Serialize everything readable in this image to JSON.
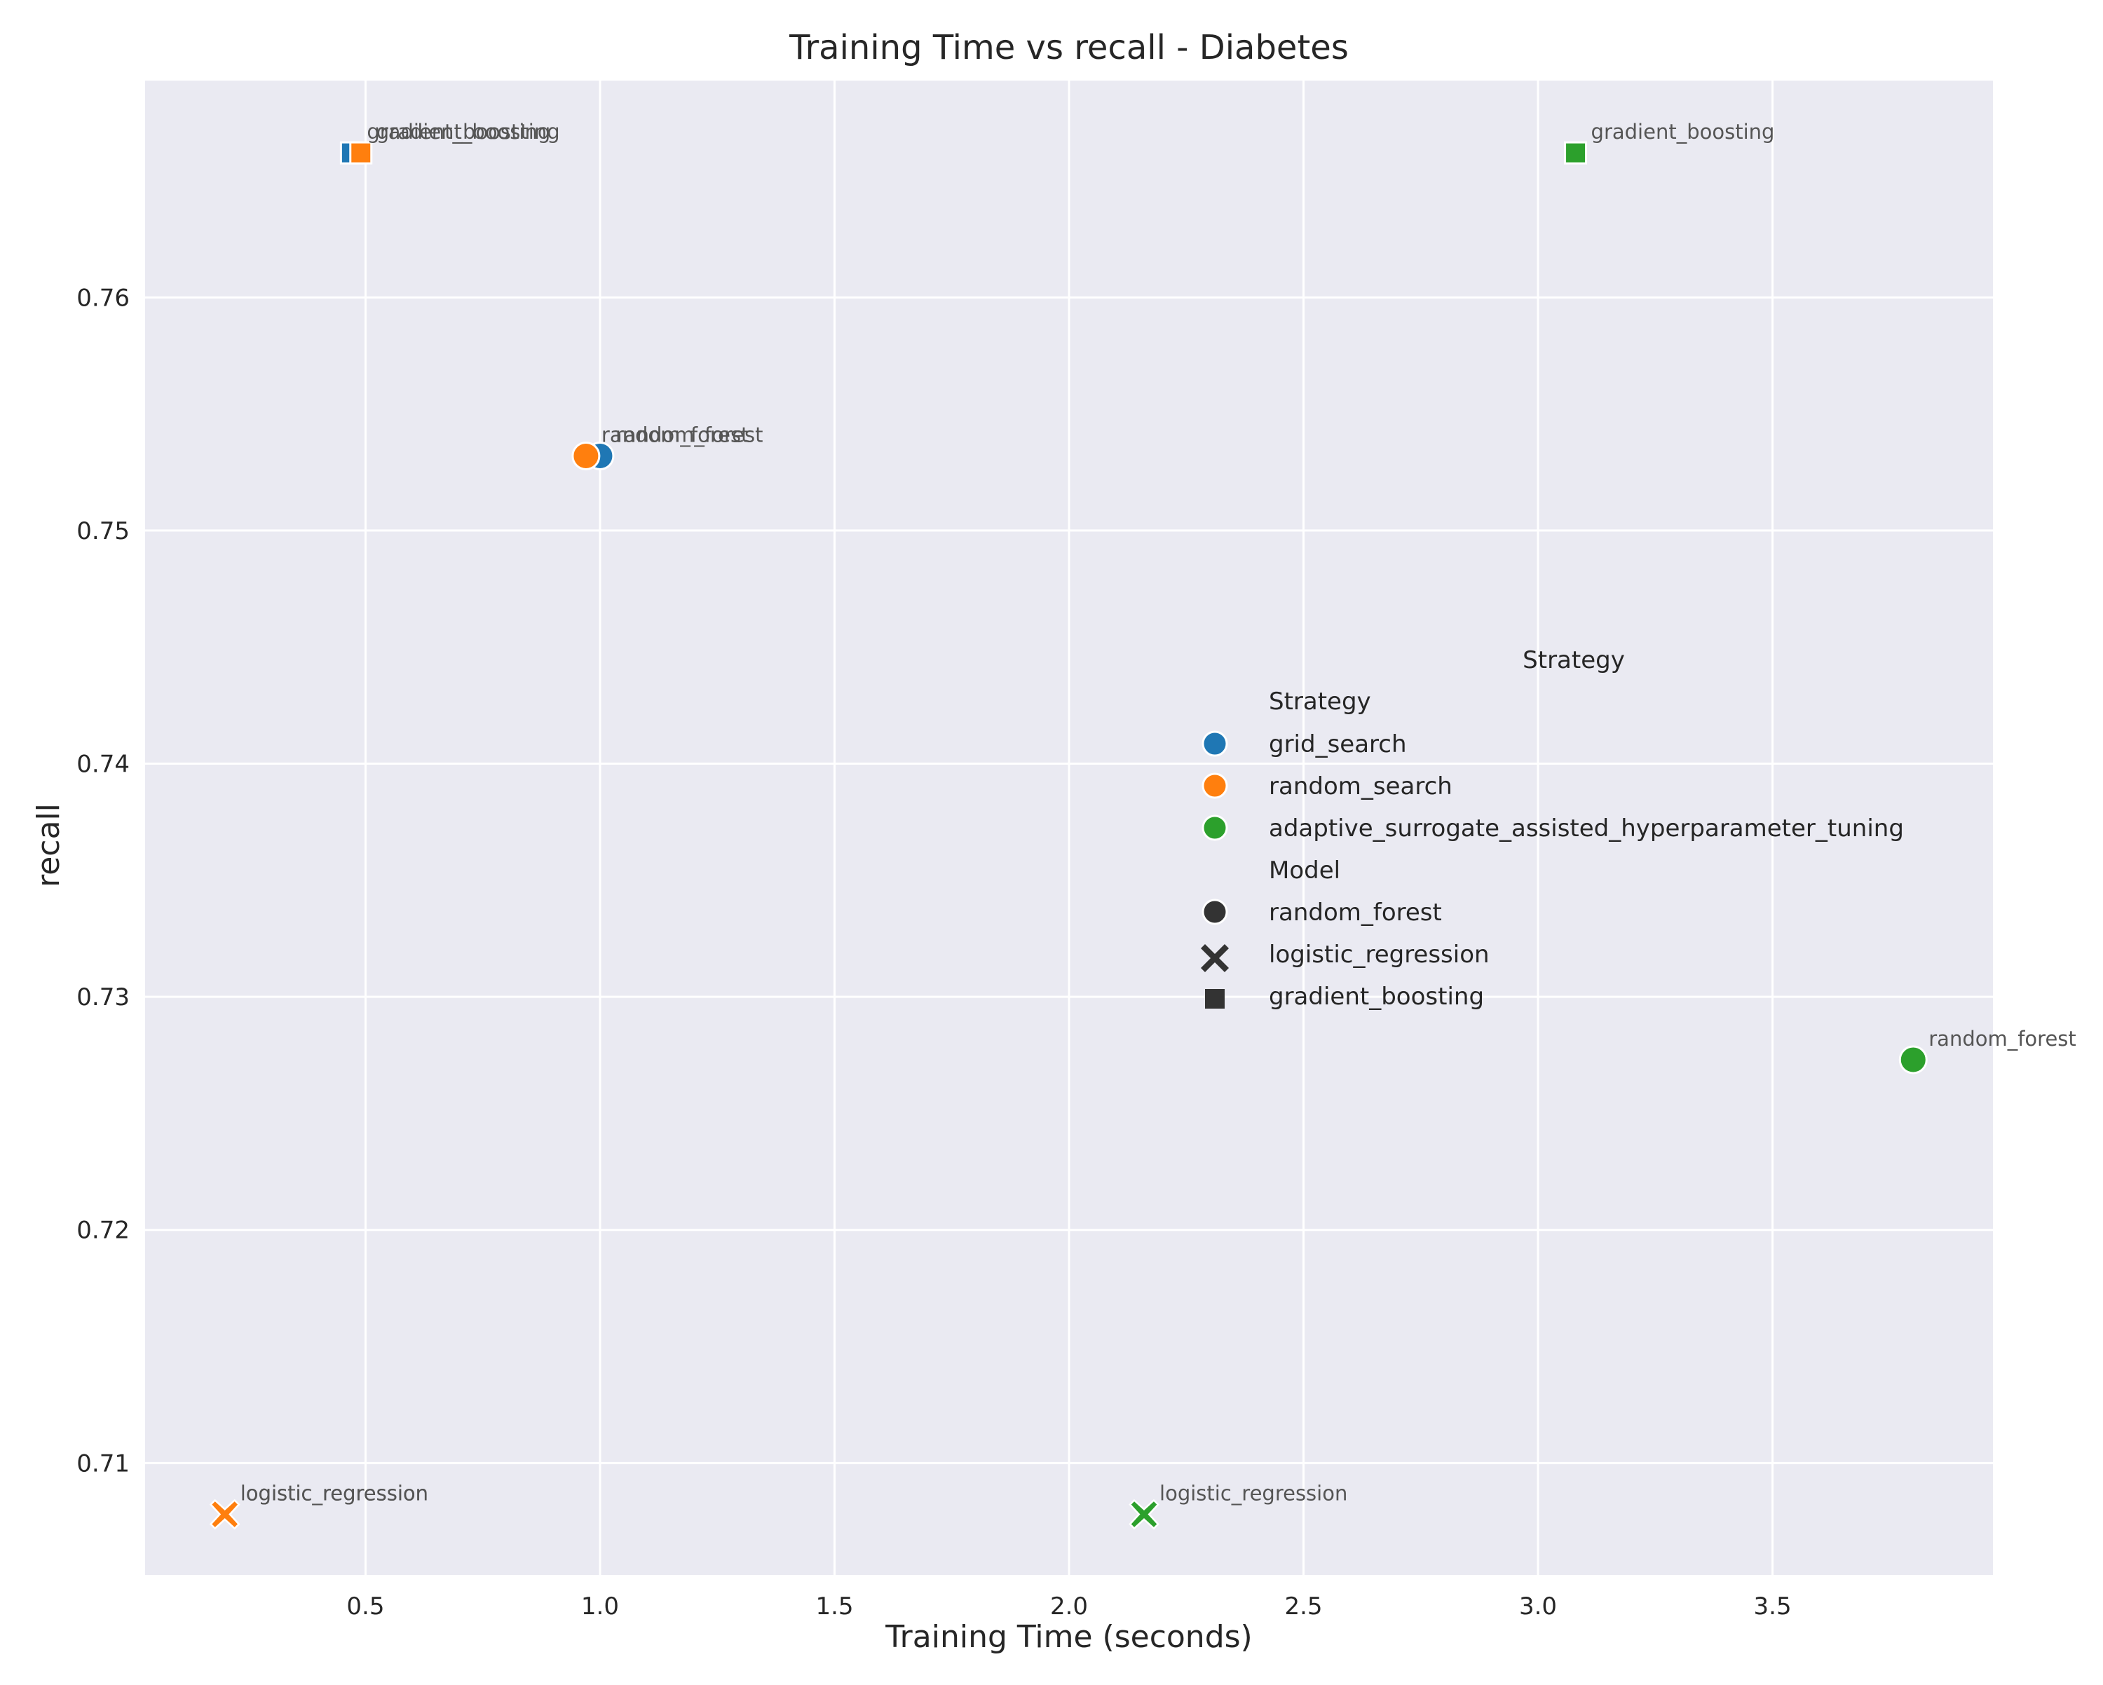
{
  "chart_data": {
    "type": "scatter",
    "title": "Training Time vs recall - Diabetes",
    "xlabel": "Training Time (seconds)",
    "ylabel": "recall",
    "xlim": [
      0.03,
      3.97
    ],
    "ylim": [
      0.7052,
      0.7693
    ],
    "xticks": [
      0.5,
      1.0,
      1.5,
      2.0,
      2.5,
      3.0,
      3.5
    ],
    "xtick_labels": [
      "0.5",
      "1.0",
      "1.5",
      "2.0",
      "2.5",
      "3.0",
      "3.5"
    ],
    "yticks": [
      0.71,
      0.72,
      0.73,
      0.74,
      0.75,
      0.76
    ],
    "ytick_labels": [
      "0.71",
      "0.72",
      "0.73",
      "0.74",
      "0.75",
      "0.76"
    ],
    "grid": true,
    "legend_placement": "center-right",
    "legend": {
      "outer_title": "Strategy",
      "hue_title": "Strategy",
      "style_title": "Model",
      "hue_entries": [
        {
          "label": "grid_search",
          "color": "#1f77b4"
        },
        {
          "label": "random_search",
          "color": "#ff7f0e"
        },
        {
          "label": "adaptive_surrogate_assisted_hyperparameter_tuning",
          "color": "#2ca02c"
        }
      ],
      "style_entries": [
        {
          "label": "random_forest",
          "marker": "circle"
        },
        {
          "label": "logistic_regression",
          "marker": "x"
        },
        {
          "label": "gradient_boosting",
          "marker": "square"
        }
      ]
    },
    "points": [
      {
        "x": 0.47,
        "y": 0.7662,
        "strategy": "grid_search",
        "model": "gradient_boosting",
        "label": "gradient_boosting",
        "color": "#1f77b4",
        "marker": "square"
      },
      {
        "x": 1.0,
        "y": 0.7532,
        "strategy": "grid_search",
        "model": "random_forest",
        "label": "random_forest",
        "color": "#1f77b4",
        "marker": "circle"
      },
      {
        "x": 0.2,
        "y": 0.7078,
        "strategy": "grid_search",
        "model": "logistic_regression",
        "label": "logistic_regression",
        "color": "#1f77b4",
        "marker": "x"
      },
      {
        "x": 0.49,
        "y": 0.7662,
        "strategy": "random_search",
        "model": "gradient_boosting",
        "label": "gradient_boosting",
        "color": "#ff7f0e",
        "marker": "square"
      },
      {
        "x": 0.97,
        "y": 0.7532,
        "strategy": "random_search",
        "model": "random_forest",
        "label": "random_forest",
        "color": "#ff7f0e",
        "marker": "circle"
      },
      {
        "x": 0.2,
        "y": 0.7078,
        "strategy": "random_search",
        "model": "logistic_regression",
        "label": "logistic_regression",
        "color": "#ff7f0e",
        "marker": "x"
      },
      {
        "x": 3.08,
        "y": 0.7662,
        "strategy": "adaptive_surrogate_assisted_hyperparameter_tuning",
        "model": "gradient_boosting",
        "label": "gradient_boosting",
        "color": "#2ca02c",
        "marker": "square"
      },
      {
        "x": 3.8,
        "y": 0.7273,
        "strategy": "adaptive_surrogate_assisted_hyperparameter_tuning",
        "model": "random_forest",
        "label": "random_forest",
        "color": "#2ca02c",
        "marker": "circle"
      },
      {
        "x": 2.16,
        "y": 0.7078,
        "strategy": "adaptive_surrogate_assisted_hyperparameter_tuning",
        "model": "logistic_regression",
        "label": "logistic_regression",
        "color": "#2ca02c",
        "marker": "x"
      }
    ]
  }
}
